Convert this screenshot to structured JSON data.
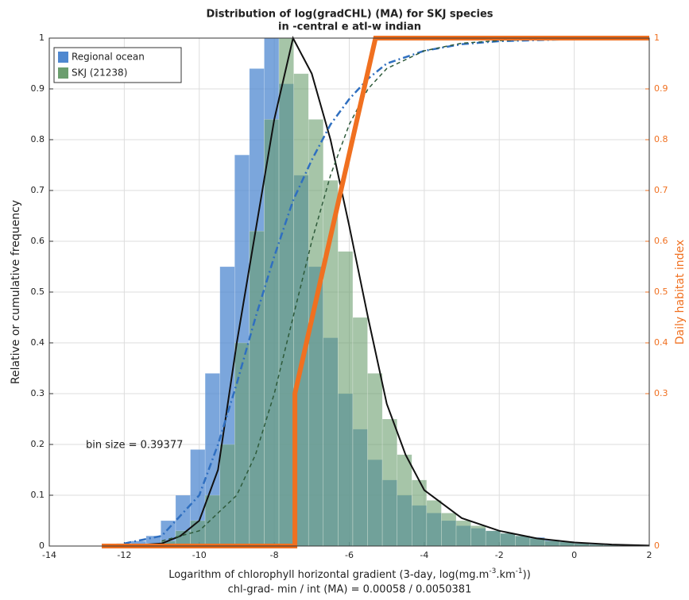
{
  "chart_data": {
    "type": "histogram",
    "title": "Distribution of log(gradCHL) (MA) for SKJ species",
    "subtitle": "in -central e atl-w indian",
    "xlabel": [
      "Logarithm of chlorophyll horizontal gradient (3-day, log(mg.m",
      "-3",
      ".km",
      "-1",
      "))"
    ],
    "xlabel2": "chl-grad- min / int (MA) = 0.00058 / 0.0050381",
    "ylabel": "Relative or cumulative frequency",
    "y2label": "Daily habitat index",
    "annotation": "bin size = 0.39377",
    "xlim": [
      -14,
      2
    ],
    "ylim": [
      0,
      1
    ],
    "y2lim": [
      0,
      1
    ],
    "xticks": [
      -14,
      -12,
      -10,
      -8,
      -6,
      -4,
      -2,
      0,
      2
    ],
    "yticks": [
      0,
      0.1,
      0.2,
      0.3,
      0.4,
      0.5,
      0.6,
      0.7,
      0.8,
      0.9,
      1
    ],
    "y2ticks": [
      0,
      0.3,
      0.4,
      0.5,
      0.6,
      0.7,
      0.8,
      0.9,
      1
    ],
    "grid": true,
    "legend": "upper left",
    "bins": [
      -12.6,
      -12.2062,
      -11.8125,
      -11.4187,
      -11.0249,
      -10.6312,
      -10.2374,
      -9.8436,
      -9.4498,
      -9.0561,
      -8.6623,
      -8.2685,
      -7.8748,
      -7.481,
      -7.0872,
      -6.6935,
      -6.2997,
      -5.9059,
      -5.5121,
      -5.1184,
      -4.7246,
      -4.3308,
      -3.9371,
      -3.5433,
      -3.1495,
      -2.7558,
      -2.362,
      -1.9682,
      -1.5744,
      -1.1807,
      -0.7869,
      -0.3931,
      0.0006,
      0.3944,
      0.7882,
      1.1819,
      1.5757,
      1.9695
    ],
    "series": [
      {
        "name": "Regional ocean",
        "color": "#4f88d0",
        "values": [
          0.003,
          0.005,
          0.01,
          0.02,
          0.05,
          0.1,
          0.19,
          0.34,
          0.55,
          0.77,
          0.94,
          1.0,
          0.91,
          0.73,
          0.55,
          0.41,
          0.3,
          0.23,
          0.17,
          0.13,
          0.1,
          0.08,
          0.065,
          0.05,
          0.04,
          0.035,
          0.03,
          0.025,
          0.02,
          0.017,
          0.012,
          0.009,
          0.006,
          0.004,
          0.003,
          0.002,
          0.001
        ]
      },
      {
        "name": "SKJ  (21238)",
        "color": "#6b9e6e",
        "values": [
          0,
          0,
          0.003,
          0.005,
          0.01,
          0.03,
          0.05,
          0.1,
          0.2,
          0.4,
          0.62,
          0.84,
          1.0,
          0.93,
          0.84,
          0.72,
          0.58,
          0.45,
          0.34,
          0.25,
          0.18,
          0.13,
          0.09,
          0.065,
          0.05,
          0.04,
          0.03,
          0.025,
          0.02,
          0.015,
          0.01,
          0.008,
          0.005,
          0.003,
          0.002,
          0.001,
          0.001
        ]
      }
    ],
    "curves": [
      {
        "color": "#111111",
        "style": "solid",
        "x": [
          -12,
          -11,
          -10.5,
          -10,
          -9.5,
          -9,
          -8.5,
          -8,
          -7.5,
          -7,
          -6.5,
          -6,
          -5.5,
          -5,
          -4.5,
          -4,
          -3,
          -2,
          -1,
          0,
          1,
          2
        ],
        "values": [
          0,
          0.005,
          0.02,
          0.05,
          0.15,
          0.4,
          0.62,
          0.84,
          1.0,
          0.93,
          0.8,
          0.63,
          0.45,
          0.28,
          0.18,
          0.11,
          0.055,
          0.03,
          0.015,
          0.007,
          0.003,
          0.001
        ]
      },
      {
        "color": "#2f6fc0",
        "style": "dashdot",
        "x": [
          -12,
          -11,
          -10,
          -9.5,
          -9,
          -8.5,
          -8,
          -7.5,
          -7,
          -6.5,
          -6,
          -5.5,
          -5,
          -4,
          -3,
          -2,
          0,
          2
        ],
        "values": [
          0.005,
          0.02,
          0.1,
          0.2,
          0.32,
          0.45,
          0.57,
          0.68,
          0.76,
          0.83,
          0.88,
          0.92,
          0.95,
          0.975,
          0.988,
          0.994,
          0.998,
          1
        ]
      },
      {
        "color": "#2e5a3a",
        "style": "dashed",
        "x": [
          -11,
          -10,
          -9,
          -8.5,
          -8,
          -7.5,
          -7,
          -6.5,
          -6,
          -5.5,
          -5,
          -4,
          -3,
          -2,
          0,
          2
        ],
        "values": [
          0.01,
          0.03,
          0.1,
          0.18,
          0.3,
          0.45,
          0.6,
          0.73,
          0.83,
          0.9,
          0.94,
          0.975,
          0.99,
          0.995,
          0.999,
          1
        ]
      },
      {
        "color": "#f07020",
        "style": "thick",
        "axis": "y2",
        "x": [
          -12.6,
          -7.45,
          -7.45,
          -5.3,
          2
        ],
        "values": [
          0,
          0,
          0.3,
          1,
          1
        ]
      }
    ]
  }
}
